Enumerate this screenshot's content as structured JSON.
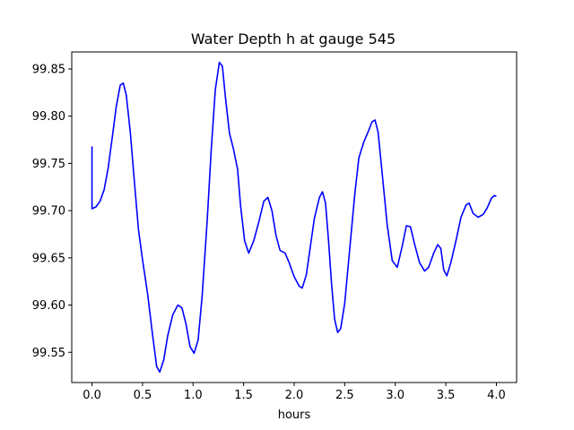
{
  "chart_data": {
    "type": "line",
    "title": "Water Depth h at gauge 545",
    "xlabel": "hours",
    "ylabel": "",
    "xlim": [
      -0.2,
      4.2
    ],
    "ylim": [
      99.518,
      99.868
    ],
    "xticks": [
      0.0,
      0.5,
      1.0,
      1.5,
      2.0,
      2.5,
      3.0,
      3.5,
      4.0
    ],
    "xtick_labels": [
      "0.0",
      "0.5",
      "1.0",
      "1.5",
      "2.0",
      "2.5",
      "3.0",
      "3.5",
      "4.0"
    ],
    "yticks": [
      99.55,
      99.6,
      99.65,
      99.7,
      99.75,
      99.8,
      99.85
    ],
    "ytick_labels": [
      "99.55",
      "99.60",
      "99.65",
      "99.70",
      "99.75",
      "99.80",
      "99.85"
    ],
    "grid": false,
    "series": [
      {
        "color": "#0000ff",
        "points": [
          [
            0.0,
            99.768
          ],
          [
            0.0,
            99.702
          ],
          [
            0.04,
            99.704
          ],
          [
            0.08,
            99.71
          ],
          [
            0.12,
            99.722
          ],
          [
            0.16,
            99.745
          ],
          [
            0.2,
            99.777
          ],
          [
            0.24,
            99.81
          ],
          [
            0.28,
            99.833
          ],
          [
            0.31,
            99.835
          ],
          [
            0.34,
            99.822
          ],
          [
            0.38,
            99.782
          ],
          [
            0.42,
            99.73
          ],
          [
            0.46,
            99.68
          ],
          [
            0.5,
            99.648
          ],
          [
            0.55,
            99.612
          ],
          [
            0.6,
            99.568
          ],
          [
            0.64,
            99.535
          ],
          [
            0.67,
            99.529
          ],
          [
            0.71,
            99.542
          ],
          [
            0.75,
            99.568
          ],
          [
            0.8,
            99.59
          ],
          [
            0.85,
            99.6
          ],
          [
            0.89,
            99.597
          ],
          [
            0.93,
            99.58
          ],
          [
            0.97,
            99.556
          ],
          [
            1.01,
            99.549
          ],
          [
            1.05,
            99.563
          ],
          [
            1.09,
            99.61
          ],
          [
            1.14,
            99.69
          ],
          [
            1.18,
            99.765
          ],
          [
            1.22,
            99.828
          ],
          [
            1.26,
            99.857
          ],
          [
            1.29,
            99.853
          ],
          [
            1.32,
            99.82
          ],
          [
            1.36,
            99.782
          ],
          [
            1.4,
            99.765
          ],
          [
            1.44,
            99.744
          ],
          [
            1.47,
            99.705
          ],
          [
            1.51,
            99.668
          ],
          [
            1.55,
            99.655
          ],
          [
            1.6,
            99.668
          ],
          [
            1.65,
            99.688
          ],
          [
            1.7,
            99.71
          ],
          [
            1.74,
            99.714
          ],
          [
            1.78,
            99.7
          ],
          [
            1.82,
            99.674
          ],
          [
            1.86,
            99.658
          ],
          [
            1.91,
            99.655
          ],
          [
            1.95,
            99.645
          ],
          [
            2.0,
            99.63
          ],
          [
            2.05,
            99.62
          ],
          [
            2.08,
            99.618
          ],
          [
            2.12,
            99.632
          ],
          [
            2.16,
            99.662
          ],
          [
            2.2,
            99.692
          ],
          [
            2.25,
            99.714
          ],
          [
            2.28,
            99.72
          ],
          [
            2.31,
            99.708
          ],
          [
            2.34,
            99.668
          ],
          [
            2.37,
            99.622
          ],
          [
            2.4,
            99.585
          ],
          [
            2.43,
            99.571
          ],
          [
            2.46,
            99.575
          ],
          [
            2.5,
            99.602
          ],
          [
            2.55,
            99.66
          ],
          [
            2.6,
            99.718
          ],
          [
            2.64,
            99.756
          ],
          [
            2.69,
            99.773
          ],
          [
            2.73,
            99.783
          ],
          [
            2.77,
            99.794
          ],
          [
            2.8,
            99.796
          ],
          [
            2.83,
            99.783
          ],
          [
            2.87,
            99.74
          ],
          [
            2.92,
            99.685
          ],
          [
            2.97,
            99.647
          ],
          [
            3.02,
            99.64
          ],
          [
            3.07,
            99.663
          ],
          [
            3.11,
            99.684
          ],
          [
            3.15,
            99.683
          ],
          [
            3.19,
            99.665
          ],
          [
            3.24,
            99.645
          ],
          [
            3.29,
            99.636
          ],
          [
            3.33,
            99.64
          ],
          [
            3.38,
            99.655
          ],
          [
            3.42,
            99.664
          ],
          [
            3.45,
            99.66
          ],
          [
            3.48,
            99.637
          ],
          [
            3.51,
            99.631
          ],
          [
            3.55,
            99.645
          ],
          [
            3.6,
            99.668
          ],
          [
            3.65,
            99.693
          ],
          [
            3.7,
            99.706
          ],
          [
            3.73,
            99.708
          ],
          [
            3.77,
            99.697
          ],
          [
            3.82,
            99.693
          ],
          [
            3.87,
            99.696
          ],
          [
            3.91,
            99.703
          ],
          [
            3.95,
            99.713
          ],
          [
            3.98,
            99.716
          ],
          [
            4.0,
            99.715
          ]
        ]
      }
    ]
  }
}
